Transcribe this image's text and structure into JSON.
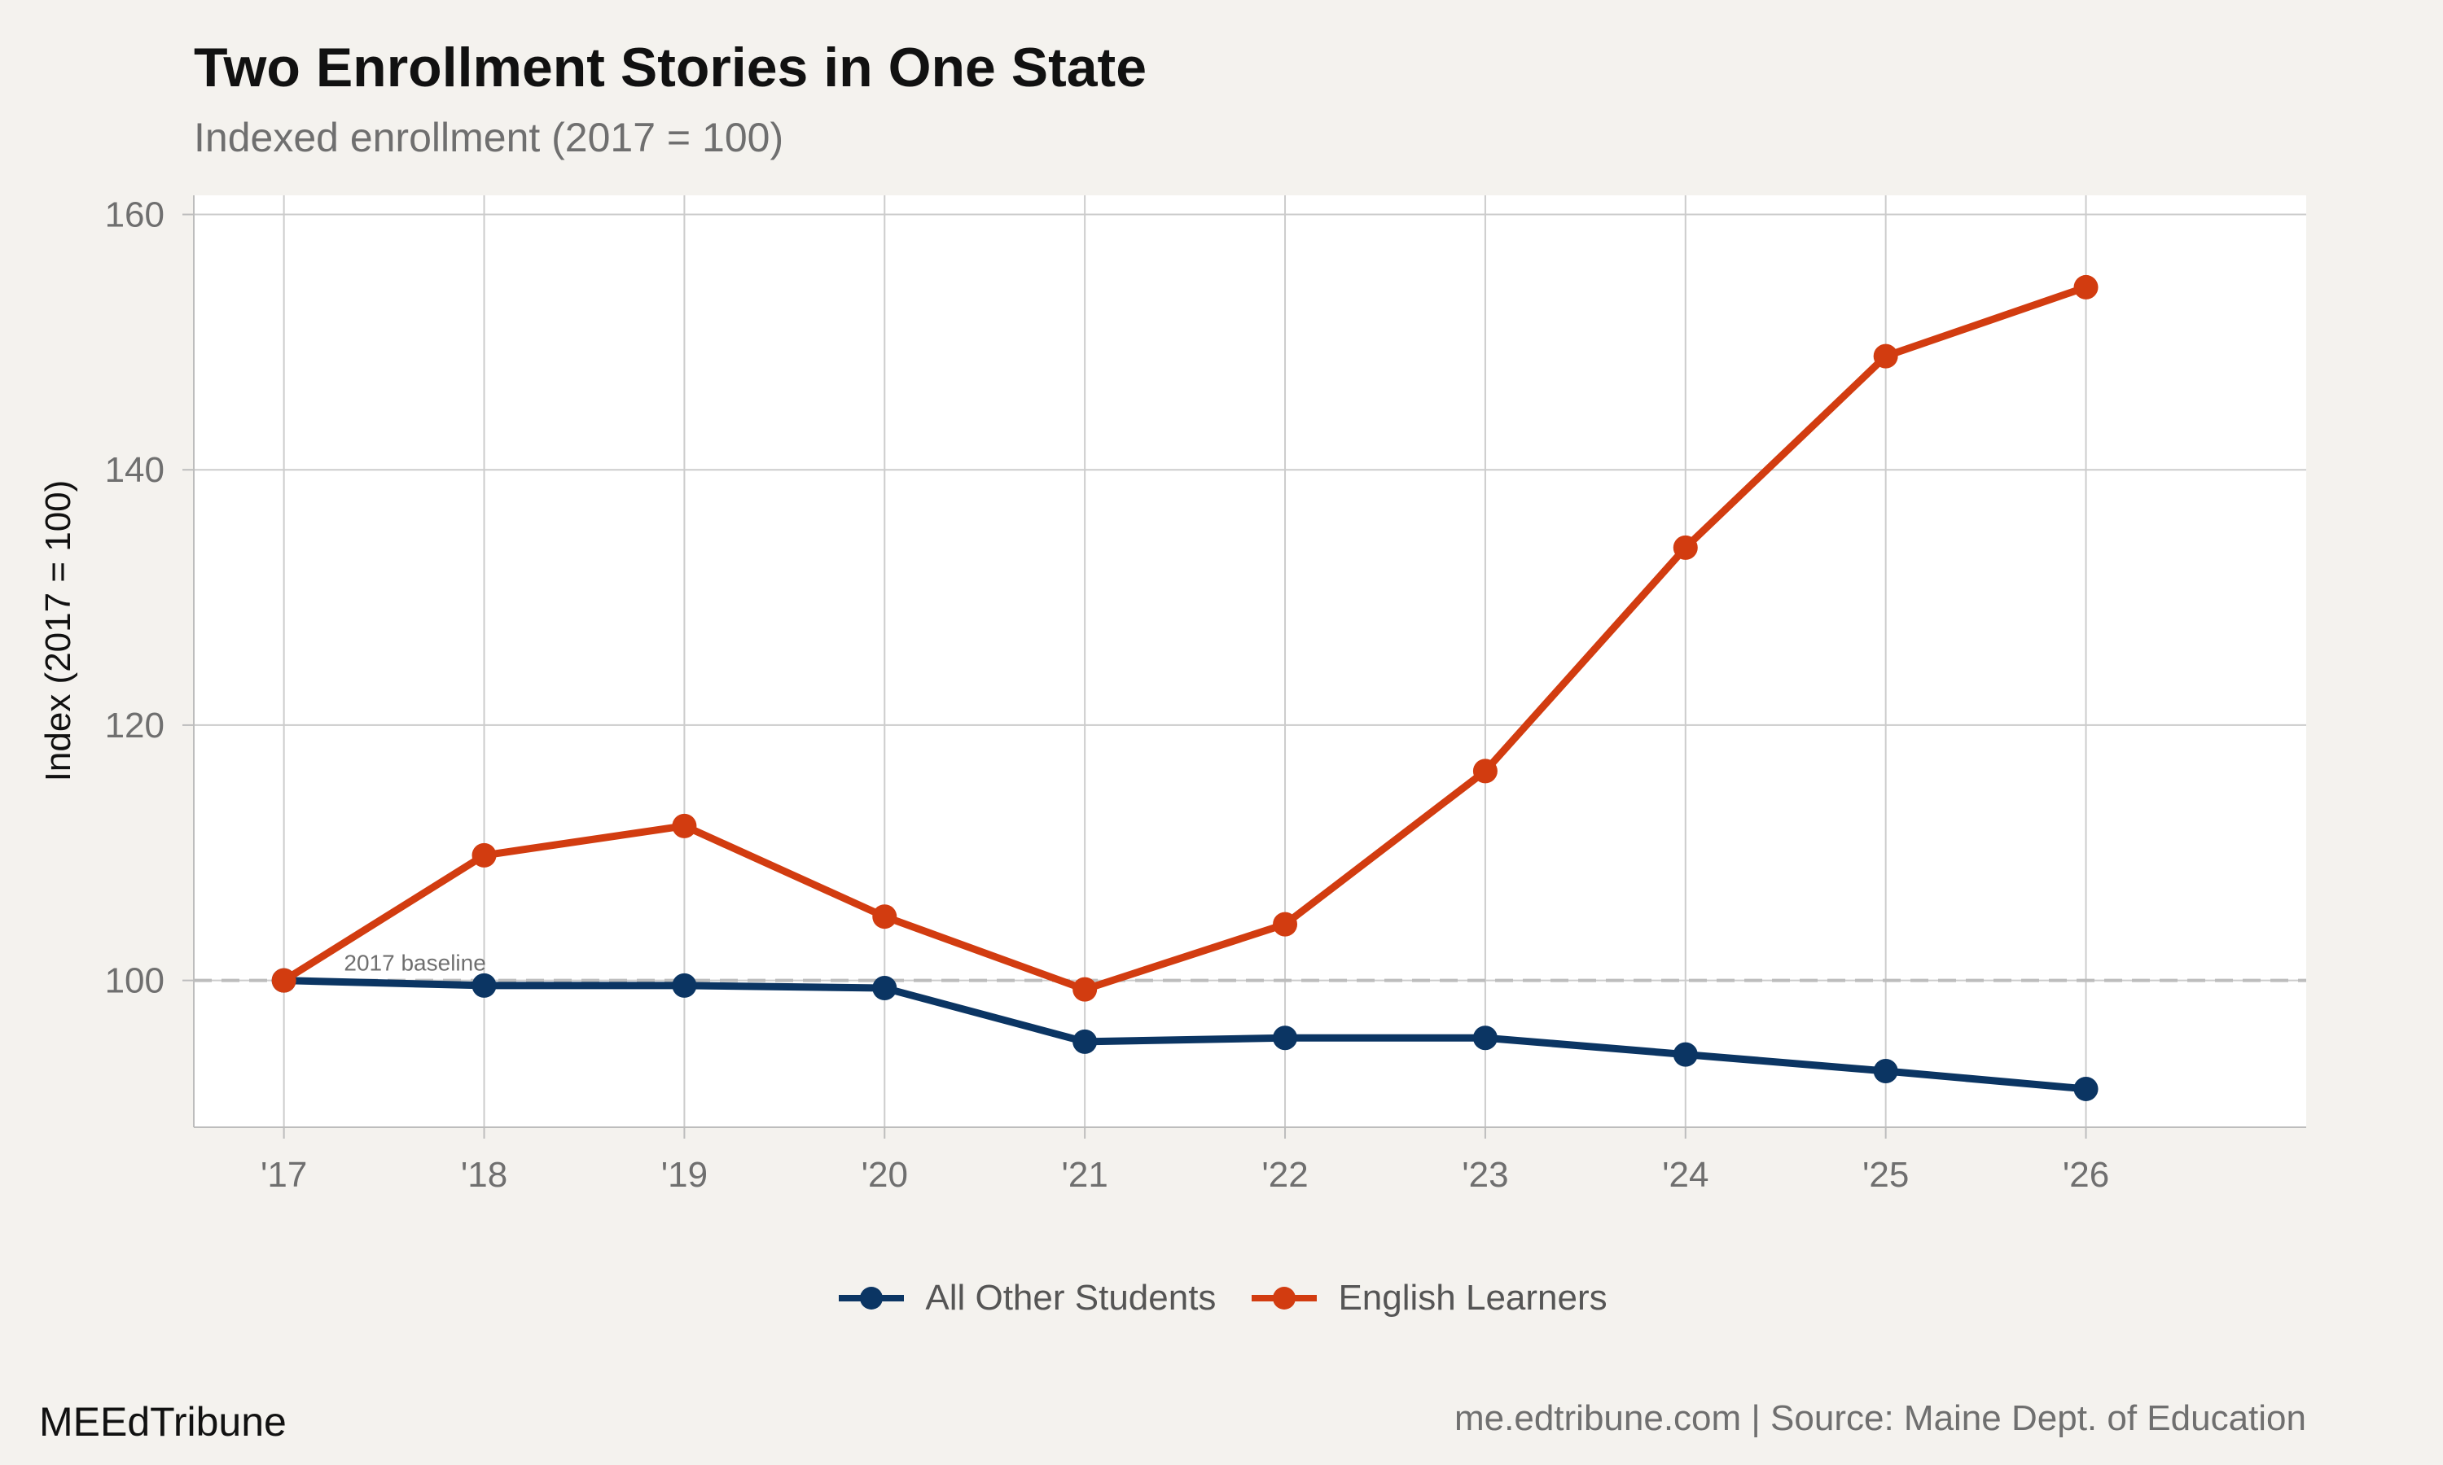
{
  "header": {
    "title": "Two Enrollment Stories in One State",
    "subtitle": "Indexed enrollment (2017 = 100)"
  },
  "footer": {
    "brand": "MEEdTribune",
    "source": "me.edtribune.com | Source: Maine Dept. of Education"
  },
  "chart_data": {
    "type": "line",
    "title": "Two Enrollment Stories in One State",
    "subtitle": "Indexed enrollment (2017 = 100)",
    "xlabel": "",
    "ylabel": "Index (2017 = 100)",
    "categories": [
      "'17",
      "'18",
      "'19",
      "'20",
      "'21",
      "'22",
      "'23",
      "'24",
      "'25",
      "'26"
    ],
    "x": [
      2017,
      2018,
      2019,
      2020,
      2021,
      2022,
      2023,
      2024,
      2025,
      2026
    ],
    "xlim": [
      2016.55,
      2027.1
    ],
    "ylim": [
      88.5,
      161.5
    ],
    "yticks": [
      100,
      120,
      140,
      160
    ],
    "series": [
      {
        "name": "All Other Students",
        "color": "#0b3563",
        "values": [
          100,
          99.6,
          99.6,
          99.4,
          95.2,
          95.5,
          95.5,
          94.2,
          92.9,
          91.5
        ]
      },
      {
        "name": "English Learners",
        "color": "#d23c10",
        "values": [
          100,
          109.8,
          112.1,
          105.0,
          99.3,
          104.4,
          116.4,
          133.9,
          148.9,
          154.3
        ]
      }
    ],
    "reference_line": {
      "y": 100,
      "label": "2017 baseline",
      "color": "#bdbdbd"
    },
    "grid": true,
    "legend": "bottom"
  }
}
